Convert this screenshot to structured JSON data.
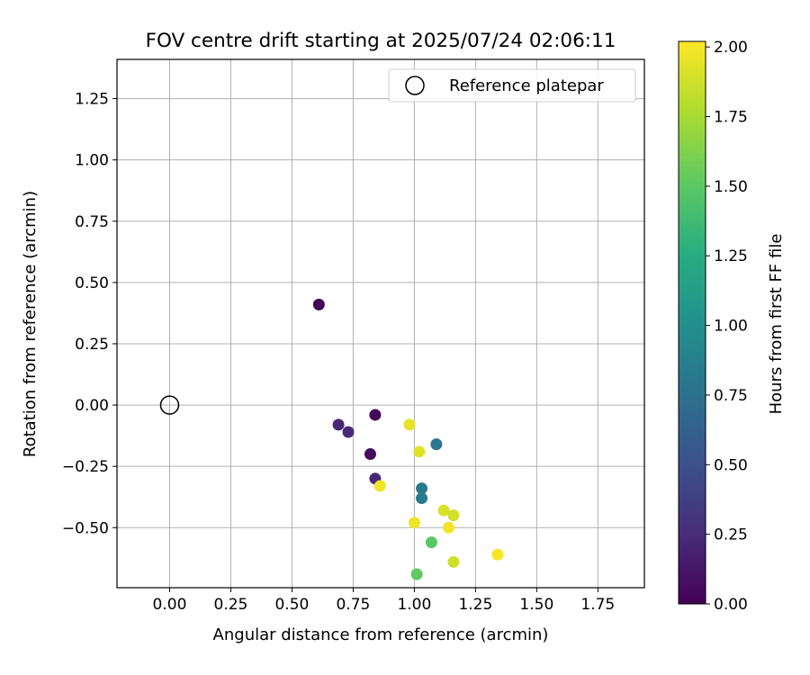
{
  "chart_data": {
    "type": "scatter",
    "title": "FOV centre drift starting at 2025/07/24 02:06:11",
    "xlabel": "Angular distance from reference (arcmin)",
    "ylabel": "Rotation from reference (arcmin)",
    "xlim": [
      -0.215,
      1.94
    ],
    "ylim": [
      -0.745,
      1.41
    ],
    "xticks": [
      "0.00",
      "0.25",
      "0.50",
      "0.75",
      "1.00",
      "1.25",
      "1.50",
      "1.75"
    ],
    "xtick_values": [
      0,
      0.25,
      0.5,
      0.75,
      1.0,
      1.25,
      1.5,
      1.75
    ],
    "yticks": [
      "−0.50",
      "−0.25",
      "0.00",
      "0.25",
      "0.50",
      "0.75",
      "1.00",
      "1.25"
    ],
    "ytick_values": [
      -0.5,
      -0.25,
      0,
      0.25,
      0.5,
      0.75,
      1.0,
      1.25
    ],
    "grid": true,
    "legend": {
      "position": "top-right",
      "entries": [
        "Reference platepar"
      ]
    },
    "reference_point": {
      "x": 0.0,
      "y": 0.0
    },
    "colorbar": {
      "label": "Hours from first FF file",
      "colormap": "viridis",
      "range": [
        0,
        2.02
      ],
      "ticks": [
        "0.00",
        "0.25",
        "0.50",
        "0.75",
        "1.00",
        "1.25",
        "1.50",
        "1.75",
        "2.00"
      ],
      "tick_values": [
        0,
        0.25,
        0.5,
        0.75,
        1.0,
        1.25,
        1.5,
        1.75,
        2.0
      ]
    },
    "points": [
      {
        "x": 0.61,
        "y": 0.41,
        "hours": 0.02
      },
      {
        "x": 0.84,
        "y": -0.04,
        "hours": 0.03
      },
      {
        "x": 0.82,
        "y": -0.2,
        "hours": 0.05
      },
      {
        "x": 0.69,
        "y": -0.08,
        "hours": 0.22
      },
      {
        "x": 0.73,
        "y": -0.11,
        "hours": 0.23
      },
      {
        "x": 0.84,
        "y": -0.3,
        "hours": 0.22
      },
      {
        "x": 1.09,
        "y": -0.16,
        "hours": 0.78
      },
      {
        "x": 1.03,
        "y": -0.34,
        "hours": 0.8
      },
      {
        "x": 1.03,
        "y": -0.38,
        "hours": 0.82
      },
      {
        "x": 1.07,
        "y": -0.56,
        "hours": 1.5
      },
      {
        "x": 1.01,
        "y": -0.69,
        "hours": 1.52
      },
      {
        "x": 0.98,
        "y": -0.08,
        "hours": 1.95
      },
      {
        "x": 1.02,
        "y": -0.19,
        "hours": 1.93
      },
      {
        "x": 0.86,
        "y": -0.33,
        "hours": 1.98
      },
      {
        "x": 1.0,
        "y": -0.48,
        "hours": 1.97
      },
      {
        "x": 1.12,
        "y": -0.43,
        "hours": 1.9
      },
      {
        "x": 1.16,
        "y": -0.45,
        "hours": 1.88
      },
      {
        "x": 1.14,
        "y": -0.5,
        "hours": 1.99
      },
      {
        "x": 1.16,
        "y": -0.64,
        "hours": 1.87
      },
      {
        "x": 1.34,
        "y": -0.61,
        "hours": 2.0
      }
    ]
  }
}
